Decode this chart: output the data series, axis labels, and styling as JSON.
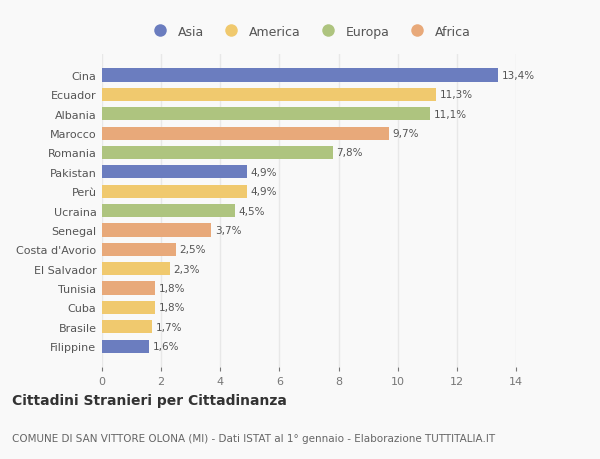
{
  "countries": [
    "Cina",
    "Ecuador",
    "Albania",
    "Marocco",
    "Romania",
    "Pakistan",
    "Perù",
    "Ucraina",
    "Senegal",
    "Costa d'Avorio",
    "El Salvador",
    "Tunisia",
    "Cuba",
    "Brasile",
    "Filippine"
  ],
  "values": [
    13.4,
    11.3,
    11.1,
    9.7,
    7.8,
    4.9,
    4.9,
    4.5,
    3.7,
    2.5,
    2.3,
    1.8,
    1.8,
    1.7,
    1.6
  ],
  "labels": [
    "13,4%",
    "11,3%",
    "11,1%",
    "9,7%",
    "7,8%",
    "4,9%",
    "4,9%",
    "4,5%",
    "3,7%",
    "2,5%",
    "2,3%",
    "1,8%",
    "1,8%",
    "1,7%",
    "1,6%"
  ],
  "continents": [
    "Asia",
    "America",
    "Europa",
    "Africa",
    "Europa",
    "Asia",
    "America",
    "Europa",
    "Africa",
    "Africa",
    "America",
    "Africa",
    "America",
    "America",
    "Asia"
  ],
  "continent_colors": {
    "Asia": "#6b7dbf",
    "America": "#f0c96e",
    "Europa": "#aec47f",
    "Africa": "#e8a97a"
  },
  "legend_order": [
    "Asia",
    "America",
    "Europa",
    "Africa"
  ],
  "title": "Cittadini Stranieri per Cittadinanza",
  "subtitle": "COMUNE DI SAN VITTORE OLONA (MI) - Dati ISTAT al 1° gennaio - Elaborazione TUTTITALIA.IT",
  "xlim": [
    0,
    14
  ],
  "xticks": [
    0,
    2,
    4,
    6,
    8,
    10,
    12,
    14
  ],
  "background_color": "#f9f9f9",
  "grid_color": "#e8e8e8",
  "title_fontsize": 10,
  "subtitle_fontsize": 7.5,
  "label_fontsize": 7.5,
  "tick_fontsize": 8,
  "legend_fontsize": 9
}
